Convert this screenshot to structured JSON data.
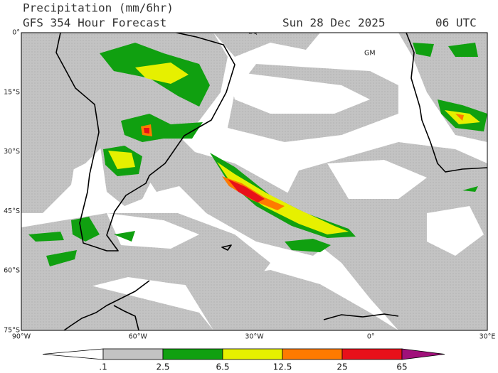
{
  "header": {
    "title": "Precipitation (mm/6hr)",
    "model": "GFS 354 Hour Forecast",
    "date": "Sun 28 Dec 2025",
    "time": "06 UTC"
  },
  "map": {
    "lat_labels": [
      "0°",
      "15°S",
      "30°S",
      "45°S",
      "60°S",
      "75°S"
    ],
    "lon_labels": [
      "90°W",
      "60°W",
      "30°W",
      "0°",
      "30°E"
    ],
    "annotations": [
      "EQ",
      "GM"
    ]
  },
  "colorbar": {
    "labels": [
      ".1",
      "2.5",
      "6.5",
      "12.5",
      "25",
      "65"
    ],
    "colors": [
      "#ffffff",
      "#c3c3c3",
      "#10a010",
      "#e6f000",
      "#ff7a00",
      "#e8101a",
      "#a0107a"
    ]
  }
}
